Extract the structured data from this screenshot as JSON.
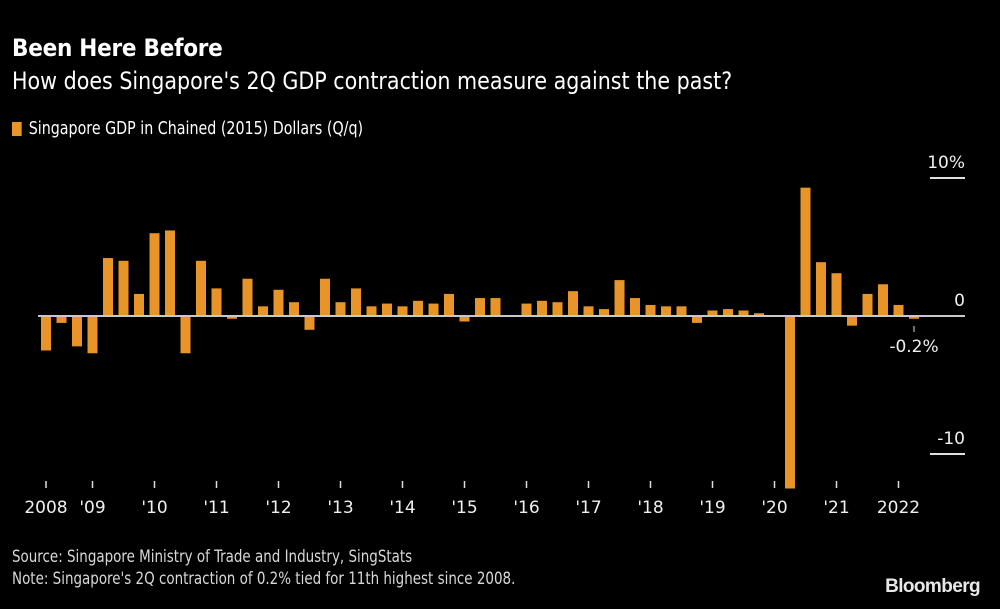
{
  "header": {
    "title": "Been Here Before",
    "subtitle": "How does Singapore's 2Q GDP contraction measure against the past?"
  },
  "legend": {
    "label": "Singapore GDP in Chained (2015) Dollars (Q/q)"
  },
  "colors": {
    "bar": "#e89429",
    "zero_line": "#c8c8c8",
    "background": "#000000"
  },
  "annotation": {
    "last_value_label": "-0.2%"
  },
  "footer": {
    "source": "Source: Singapore Ministry of Trade and Industry, SingStats",
    "note": "Note: Singapore's 2Q contraction of 0.2% tied for 11th highest since 2008."
  },
  "brand": "Bloomberg",
  "chart_data": {
    "type": "bar",
    "title": "Been Here Before",
    "subtitle": "How does Singapore's 2Q GDP contraction measure against the past?",
    "xlabel": "",
    "ylabel": "",
    "ylim": [
      -12.5,
      10
    ],
    "y_ticks": [
      {
        "value": 10,
        "label": "10%"
      },
      {
        "value": 0,
        "label": "0"
      },
      {
        "value": -10,
        "label": "-10"
      }
    ],
    "x_ticks": [
      {
        "index": 0,
        "label": "2008"
      },
      {
        "index": 3,
        "label": "'09"
      },
      {
        "index": 7,
        "label": "'10"
      },
      {
        "index": 11,
        "label": "'11"
      },
      {
        "index": 15,
        "label": "'12"
      },
      {
        "index": 19,
        "label": "'13"
      },
      {
        "index": 23,
        "label": "'14"
      },
      {
        "index": 27,
        "label": "'15"
      },
      {
        "index": 31,
        "label": "'16"
      },
      {
        "index": 35,
        "label": "'17"
      },
      {
        "index": 39,
        "label": "'18"
      },
      {
        "index": 43,
        "label": "'19"
      },
      {
        "index": 47,
        "label": "'20"
      },
      {
        "index": 51,
        "label": "'21"
      },
      {
        "index": 55,
        "label": "2022"
      }
    ],
    "legend": [
      "Singapore GDP in Chained (2015) Dollars (Q/q)"
    ],
    "legend_position": "top-left",
    "grid": false,
    "series": [
      {
        "name": "Singapore GDP in Chained (2015) Dollars (Q/q)",
        "values": [
          -2.5,
          -0.5,
          -2.2,
          -2.7,
          4.2,
          4.0,
          1.6,
          6.0,
          6.2,
          -2.7,
          4.0,
          2.0,
          -0.2,
          2.7,
          0.7,
          1.9,
          1.0,
          -1.0,
          2.7,
          1.0,
          2.0,
          0.7,
          0.9,
          0.7,
          1.1,
          0.9,
          1.6,
          -0.4,
          1.3,
          1.3,
          0.0,
          0.9,
          1.1,
          1.0,
          1.8,
          0.7,
          0.5,
          2.6,
          1.3,
          0.8,
          0.7,
          0.7,
          -0.5,
          0.4,
          0.5,
          0.4,
          0.2,
          -0.05,
          -12.5,
          9.3,
          3.9,
          3.1,
          -0.7,
          1.6,
          2.3,
          0.8,
          -0.2
        ]
      }
    ]
  }
}
